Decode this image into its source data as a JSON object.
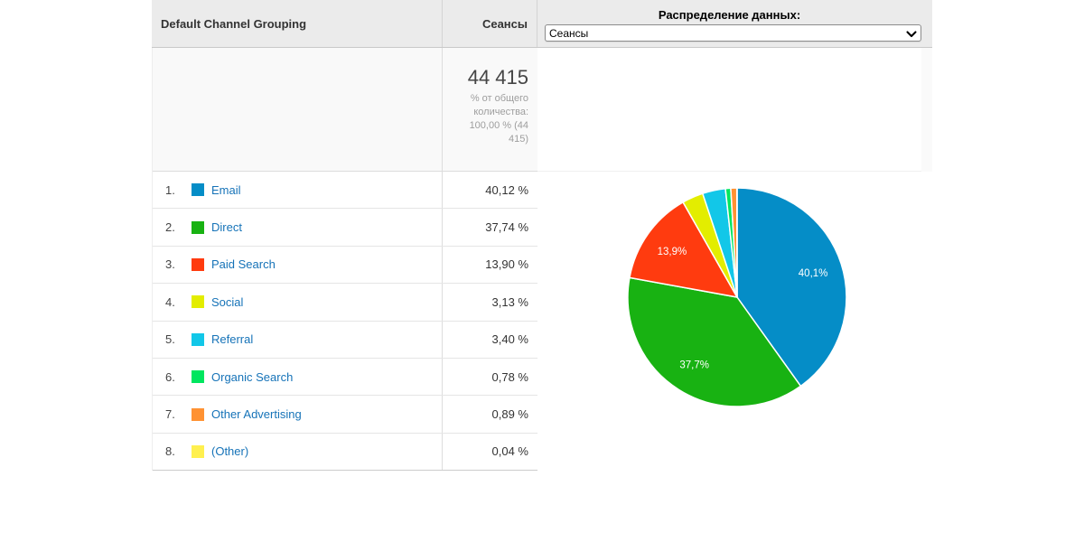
{
  "table": {
    "header": {
      "dimension": "Default Channel Grouping",
      "metric": "Сеансы"
    },
    "summary": {
      "total": "44 415",
      "caption": "% от общего количества: 100,00 % (44 415)"
    },
    "rows": [
      {
        "rank": "1.",
        "label": "Email",
        "color": "#058DC7",
        "value": "40,12 %"
      },
      {
        "rank": "2.",
        "label": "Direct",
        "color": "#18B212",
        "value": "37,74 %"
      },
      {
        "rank": "3.",
        "label": "Paid Search",
        "color": "#FF3B0F",
        "value": "13,90 %"
      },
      {
        "rank": "4.",
        "label": "Social",
        "color": "#E3ED00",
        "value": "3,13 %"
      },
      {
        "rank": "5.",
        "label": "Referral",
        "color": "#12C7E8",
        "value": "3,40 %"
      },
      {
        "rank": "6.",
        "label": "Organic Search",
        "color": "#00E65F",
        "value": "0,78 %"
      },
      {
        "rank": "7.",
        "label": "Other Advertising",
        "color": "#FF9233",
        "value": "0,89 %"
      },
      {
        "rank": "8.",
        "label": "(Other)",
        "color": "#FFF04F",
        "value": "0,04 %"
      }
    ]
  },
  "distribution": {
    "label": "Распределение данных:",
    "selected": "Сеансы"
  },
  "chart_data": {
    "type": "pie",
    "title": "",
    "categories": [
      "Email",
      "Direct",
      "Paid Search",
      "Social",
      "Referral",
      "Organic Search",
      "Other Advertising",
      "(Other)"
    ],
    "values": [
      40.12,
      37.74,
      13.9,
      3.13,
      3.4,
      0.78,
      0.89,
      0.04
    ],
    "colors": [
      "#058DC7",
      "#18B212",
      "#FF3B0F",
      "#E3ED00",
      "#12C7E8",
      "#00E65F",
      "#FF9233",
      "#FFF04F"
    ],
    "slice_labels_shown": [
      "40,1%",
      "37,7%",
      "13,9%"
    ],
    "label_min_pct": 10,
    "start_angle": "top",
    "direction": "clockwise",
    "stroke_color": "#FFFFFF",
    "label_color": "#FFFFFF",
    "legend_position": "table-left"
  }
}
